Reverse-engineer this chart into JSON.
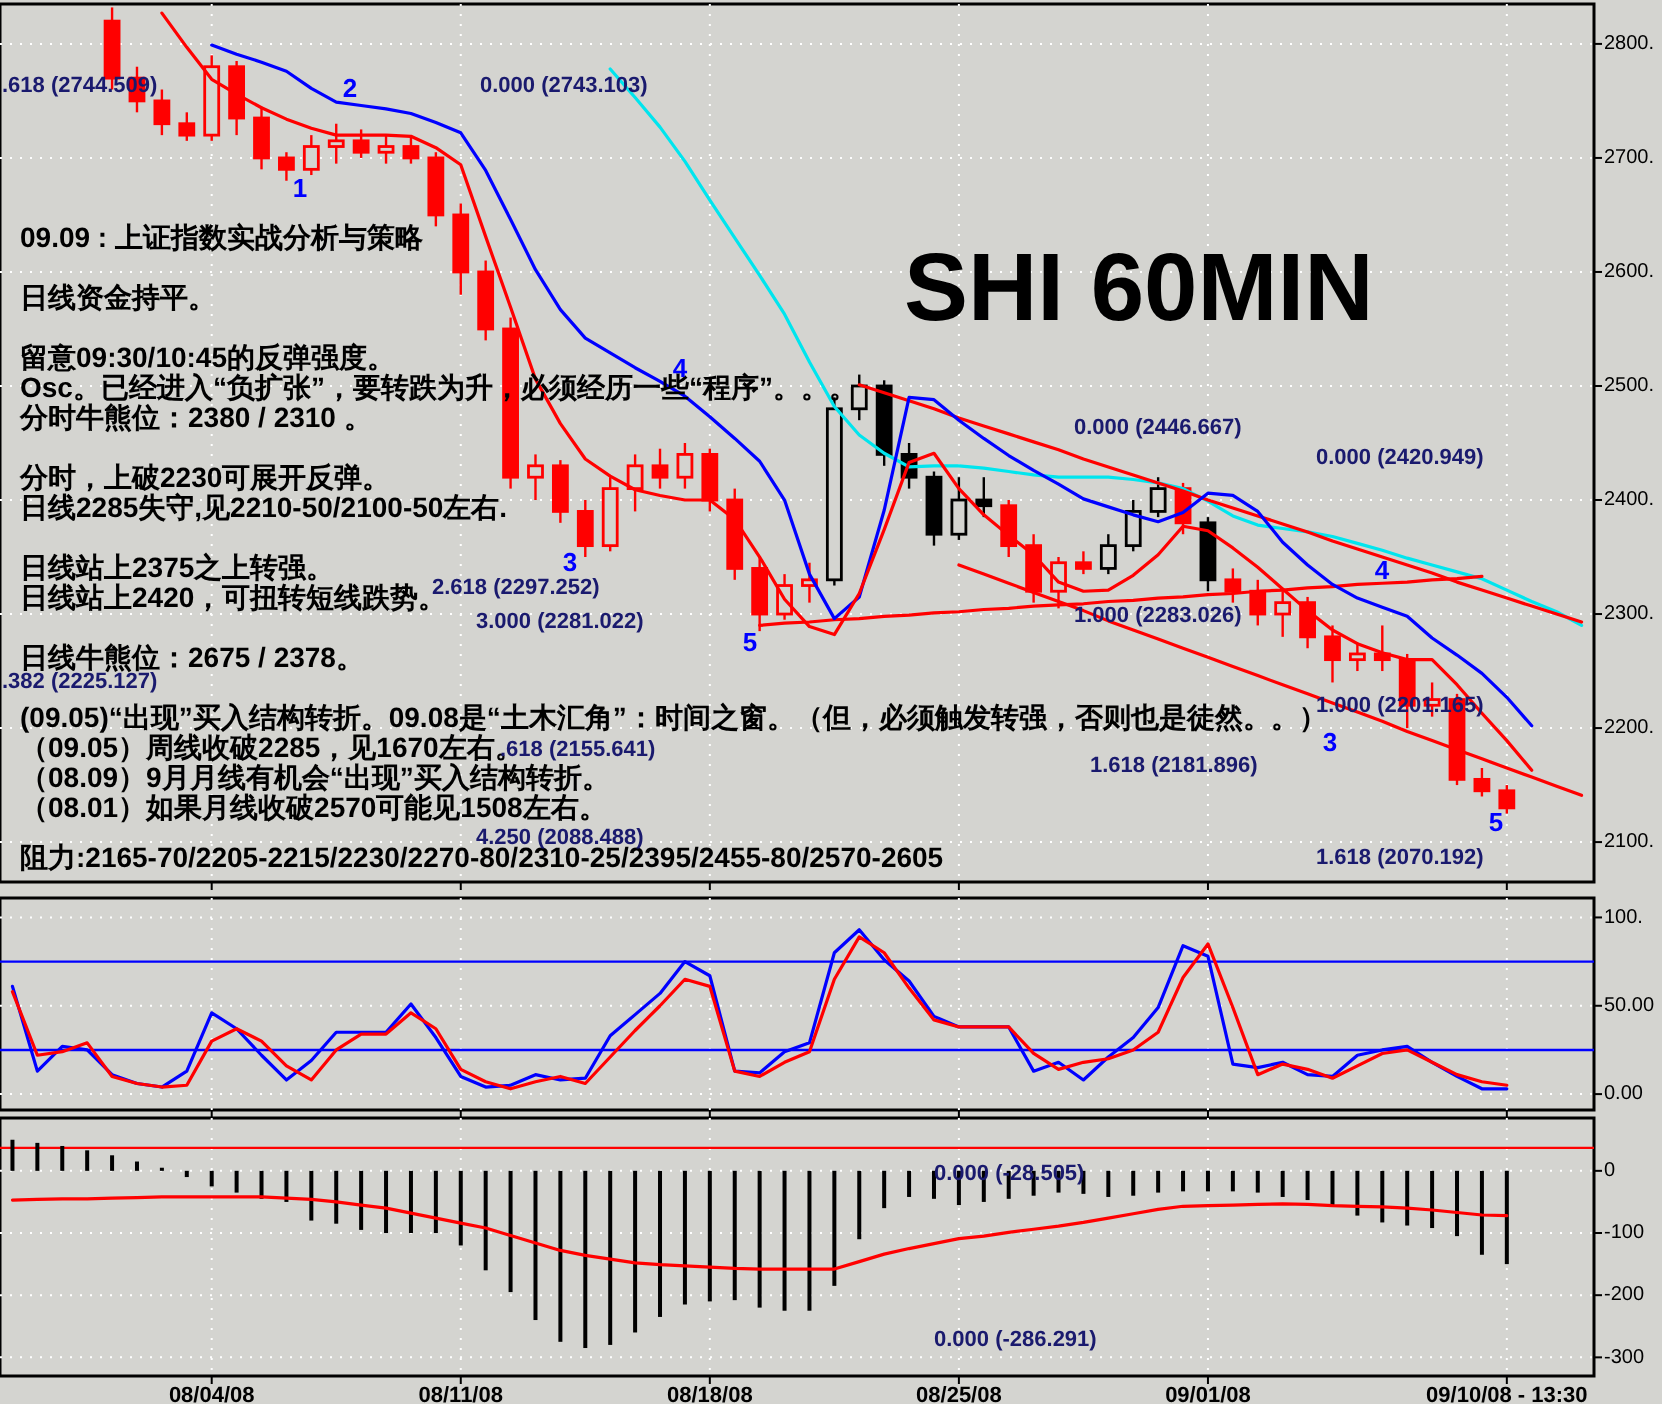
{
  "chart_data": [
    {
      "type": "candlestick",
      "title": "SHI 60MIN",
      "ohlc": [
        null,
        null,
        null,
        null,
        [
          2820,
          2832,
          2760,
          2770
        ],
        [
          2770,
          2780,
          2740,
          2750
        ],
        [
          2750,
          2760,
          2720,
          2730
        ],
        [
          2730,
          2740,
          2715,
          2720
        ],
        [
          2720,
          2790,
          2715,
          2780
        ],
        [
          2780,
          2785,
          2720,
          2735
        ],
        [
          2735,
          2745,
          2690,
          2700
        ],
        [
          2700,
          2705,
          2680,
          2690
        ],
        [
          2690,
          2720,
          2685,
          2710
        ],
        [
          2710,
          2730,
          2695,
          2715
        ],
        [
          2715,
          2725,
          2700,
          2705
        ],
        [
          2705,
          2720,
          2695,
          2710
        ],
        [
          2710,
          2720,
          2695,
          2700
        ],
        [
          2700,
          2705,
          2640,
          2650
        ],
        [
          2650,
          2660,
          2580,
          2600
        ],
        [
          2600,
          2610,
          2540,
          2550
        ],
        [
          2550,
          2560,
          2410,
          2420
        ],
        [
          2420,
          2440,
          2400,
          2430
        ],
        [
          2430,
          2435,
          2380,
          2390
        ],
        [
          2390,
          2400,
          2350,
          2360
        ],
        [
          2360,
          2420,
          2355,
          2410
        ],
        [
          2410,
          2440,
          2390,
          2430
        ],
        [
          2430,
          2445,
          2410,
          2420
        ],
        [
          2420,
          2450,
          2410,
          2440
        ],
        [
          2440,
          2445,
          2390,
          2400
        ],
        [
          2400,
          2410,
          2330,
          2340
        ],
        [
          2340,
          2350,
          2285,
          2300
        ],
        [
          2300,
          2335,
          2295,
          2325
        ],
        [
          2325,
          2345,
          2310,
          2330
        ],
        [
          2330,
          2490,
          2325,
          2480
        ],
        [
          2480,
          2510,
          2470,
          2500
        ],
        [
          2500,
          2505,
          2430,
          2440
        ],
        [
          2440,
          2450,
          2410,
          2420
        ],
        [
          2420,
          2425,
          2360,
          2370
        ],
        [
          2370,
          2420,
          2365,
          2400
        ],
        [
          2400,
          2420,
          2385,
          2395
        ],
        [
          2395,
          2400,
          2350,
          2360
        ],
        [
          2360,
          2370,
          2310,
          2320
        ],
        [
          2320,
          2350,
          2305,
          2345
        ],
        [
          2345,
          2355,
          2335,
          2340
        ],
        [
          2340,
          2370,
          2335,
          2360
        ],
        [
          2360,
          2400,
          2355,
          2390
        ],
        [
          2390,
          2420,
          2385,
          2410
        ],
        [
          2410,
          2415,
          2370,
          2380
        ],
        [
          2380,
          2385,
          2320,
          2330
        ],
        [
          2330,
          2340,
          2310,
          2320
        ],
        [
          2320,
          2330,
          2290,
          2300
        ],
        [
          2300,
          2320,
          2280,
          2310
        ],
        [
          2310,
          2315,
          2270,
          2280
        ],
        [
          2280,
          2290,
          2240,
          2260
        ],
        [
          2260,
          2275,
          2250,
          2265
        ],
        [
          2265,
          2290,
          2250,
          2260
        ],
        [
          2260,
          2265,
          2200,
          2220
        ],
        [
          2220,
          2240,
          2210,
          2225
        ],
        [
          2225,
          2230,
          2150,
          2155
        ],
        [
          2155,
          2165,
          2140,
          2145
        ],
        [
          2145,
          2150,
          2125,
          2130
        ],
        null,
        null,
        null
      ],
      "colors": [
        null,
        null,
        null,
        null,
        "#ff0000",
        "#ff0000",
        "#ff0000",
        "#ff0000",
        "#ff0000",
        "#ff0000",
        "#ff0000",
        "#ff0000",
        "#ff0000",
        "#ff0000",
        "#ff0000",
        "#ff0000",
        "#ff0000",
        "#ff0000",
        "#ff0000",
        "#ff0000",
        "#ff0000",
        "#ff0000",
        "#ff0000",
        "#ff0000",
        "#ff0000",
        "#ff0000",
        "#ff0000",
        "#ff0000",
        "#ff0000",
        "#ff0000",
        "#ff0000",
        "#ff0000",
        "#ff0000",
        "#000000",
        "#000000",
        "#000000",
        "#000000",
        "#000000",
        "#000000",
        "#000000",
        "#ff0000",
        "#ff0000",
        "#ff0000",
        "#ff0000",
        "#000000",
        "#000000",
        "#000000",
        "#ff0000",
        "#000000",
        "#ff0000",
        "#ff0000",
        "#ff0000",
        "#ff0000",
        "#ff0000",
        "#ff0000",
        "#ff0000",
        "#ff0000",
        "#ff0000",
        "#ff0000",
        "#ff0000",
        "#ff0000",
        null,
        null,
        null
      ],
      "series": [
        {
          "type": "line",
          "color": "#00e5ee",
          "values": [
            null,
            null,
            null,
            null,
            null,
            null,
            null,
            null,
            null,
            null,
            null,
            null,
            null,
            null,
            null,
            null,
            null,
            null,
            null,
            null,
            null,
            null,
            null,
            null,
            2778,
            2753,
            2727,
            2697,
            2663,
            2630,
            2597,
            2563,
            2521,
            2482,
            2457,
            2441,
            2429,
            2430,
            2430,
            2428,
            2425,
            2422,
            2420,
            2420,
            2420,
            2418,
            2415,
            2410,
            2399,
            2386,
            2378,
            2375,
            2372,
            2368,
            2362,
            2356,
            2349,
            2343,
            2337,
            2331,
            2321,
            2311,
            2302,
            2290
          ]
        },
        {
          "type": "line",
          "color": "#ff0000",
          "values": [
            null,
            null,
            null,
            null,
            null,
            null,
            null,
            null,
            null,
            null,
            null,
            null,
            null,
            null,
            null,
            null,
            null,
            null,
            null,
            null,
            null,
            null,
            null,
            null,
            null,
            null,
            null,
            null,
            null,
            null,
            null,
            null,
            null,
            null,
            2501,
            2494,
            2487,
            2480,
            2472,
            2465,
            2458,
            2451,
            2444,
            2436,
            2429,
            2422,
            2415,
            2408,
            2400,
            2393,
            2386,
            2379,
            2372,
            2364,
            2357,
            2350,
            2343,
            2336,
            2328,
            2321,
            2314,
            2307,
            2300,
            2293
          ]
        },
        {
          "type": "line",
          "color": "#ff0000",
          "values": [
            null,
            null,
            null,
            null,
            null,
            null,
            null,
            null,
            null,
            null,
            null,
            null,
            null,
            null,
            null,
            null,
            null,
            null,
            null,
            null,
            null,
            null,
            null,
            null,
            null,
            null,
            null,
            null,
            null,
            null,
            null,
            null,
            null,
            null,
            null,
            null,
            null,
            null,
            2343,
            2335,
            2327,
            2319,
            2311,
            2303,
            2294,
            2286,
            2278,
            2270,
            2262,
            2254,
            2246,
            2238,
            2230,
            2222,
            2214,
            2206,
            2197,
            2189,
            2181,
            2173,
            2165,
            2157,
            2149,
            2141
          ]
        },
        {
          "type": "line",
          "color": "#ff0000",
          "values": [
            null,
            null,
            null,
            null,
            null,
            null,
            null,
            null,
            null,
            null,
            null,
            null,
            null,
            null,
            null,
            null,
            null,
            null,
            null,
            null,
            null,
            null,
            null,
            null,
            null,
            null,
            null,
            null,
            null,
            null,
            2290,
            2292,
            2293,
            2295,
            2296,
            2298,
            2299,
            2301,
            2302,
            2304,
            2305,
            2307,
            2308,
            2309,
            2311,
            2312,
            2314,
            2315,
            2317,
            2318,
            2320,
            2321,
            2323,
            2324,
            2326,
            2327,
            2328,
            2330,
            2331,
            2333,
            null,
            null,
            null,
            null
          ]
        },
        {
          "type": "line",
          "color": "#0000ff",
          "values": [
            null,
            null,
            null,
            null,
            null,
            null,
            null,
            null,
            2799,
            2791,
            2784,
            2776,
            2761,
            2749,
            2746,
            2743,
            2739,
            2731,
            2722,
            2689,
            2646,
            2602,
            2567,
            2542,
            2529,
            2516,
            2504,
            2491,
            2473,
            2454,
            2434,
            2400,
            2335,
            2296,
            2315,
            2391,
            2490,
            2488,
            2470,
            2454,
            2439,
            2426,
            2414,
            2401,
            2394,
            2387,
            2381,
            2389,
            2406,
            2404,
            2390,
            2363,
            2343,
            2326,
            2314,
            2306,
            2298,
            2279,
            2264,
            2248,
            2227,
            2202,
            null,
            null
          ]
        },
        {
          "type": "line",
          "color": "#ff0000",
          "values": [
            null,
            null,
            null,
            null,
            null,
            null,
            2827,
            2797,
            2769,
            2756,
            2744,
            2734,
            2726,
            2720,
            2720,
            2720,
            2719,
            2709,
            2694,
            2631,
            2569,
            2506,
            2467,
            2436,
            2421,
            2409,
            2404,
            2400,
            2400,
            2383,
            2350,
            2313,
            2289,
            2282,
            2318,
            2374,
            2433,
            2441,
            2410,
            2387,
            2369,
            2352,
            2328,
            2320,
            2321,
            2334,
            2352,
            2377,
            2373,
            2358,
            2341,
            2322,
            2303,
            2286,
            2274,
            2266,
            2260,
            2260,
            2238,
            2213,
            2189,
            2163,
            null,
            null
          ]
        }
      ],
      "annotations": [
        "09.09 : 上证指数实战分析与策略",
        "日线资金持平。",
        "留意09:30/10:45的反弹强度。",
        "Osc。已经进入“负扩张”，要转跌为升，必须经历一些“程序”。。。",
        "分时牛熊位：2380 / 2310 。",
        "分时，上破2230可展开反弹。",
        "日线2285失守,见2210-50/2100-50左右.",
        "日线站上2375之上转强。",
        "日线站上2420，可扭转短线跌势。",
        "日线牛熊位：2675 / 2378。",
        "(09.05)“出现”买入结构转折。09.08是“土木汇角”：时间之窗。（但，必须触发转强，否则也是徒然。。）",
        "（09.05）周线收破2285，见1670左右。",
        "（08.09）9月月线有机会“出现”买入结构转折。",
        "（08.01）如果月线收破2570可能见1508左右。",
        "阻力:2165-70/2205-2215/2230/2270-80/2310-25/2395/2455-80/2570-2605",
        ".618 (2744.509)",
        "0.000 (2743.103)",
        "2.618 (2297.252)",
        "3.000 (2281.022)",
        ".382 (2225.127)",
        ".618 (2155.641)",
        "4.250 (2088.488)",
        "0.000 (2446.667)",
        "0.000 (2420.949)",
        "1.000 (2283.026)",
        "1.000 (2201.165)",
        "1.618 (2181.896)",
        "1.618 (2070.192)",
        "1",
        "2",
        "3",
        "4",
        "5",
        "3",
        "4",
        "5"
      ],
      "ylim": [
        2065,
        2835
      ],
      "yticks": [
        {
          "value": 2100,
          "label": "2100."
        },
        {
          "value": 2200,
          "label": "2200."
        },
        {
          "value": 2300,
          "label": "2300."
        },
        {
          "value": 2400,
          "label": "2400."
        },
        {
          "value": 2500,
          "label": "2500."
        },
        {
          "value": 2600,
          "label": "2600."
        },
        {
          "value": 2700,
          "label": "2700."
        },
        {
          "value": 2800,
          "label": "2800."
        }
      ],
      "tick_labels": "y",
      "grid": true
    },
    {
      "type": "line",
      "series": [
        {
          "color": "#0000ff",
          "values": [
            61,
            13,
            27,
            25,
            11,
            6,
            4,
            13,
            46,
            37,
            22,
            8,
            19,
            35,
            35,
            35,
            51,
            32,
            10,
            4,
            5,
            11,
            8,
            9,
            33,
            45,
            57,
            75,
            67,
            13,
            12,
            24,
            29,
            80,
            93,
            76,
            64,
            44,
            38,
            38,
            38,
            13,
            18,
            8,
            21,
            32,
            49,
            84,
            78,
            17,
            15,
            18,
            11,
            10,
            22,
            25,
            27,
            18,
            10,
            3,
            3,
            null,
            null,
            null
          ]
        },
        {
          "color": "#ff0000",
          "values": [
            58,
            22,
            24,
            29,
            10,
            6,
            4,
            5,
            30,
            37,
            30,
            16,
            8,
            25,
            34,
            34,
            46,
            37,
            14,
            7,
            3,
            7,
            10,
            6,
            21,
            36,
            50,
            65,
            61,
            13,
            10,
            18,
            24,
            65,
            89,
            80,
            60,
            42,
            38,
            38,
            38,
            23,
            14,
            18,
            20,
            25,
            35,
            66,
            85,
            49,
            11,
            17,
            14,
            9,
            16,
            23,
            25,
            18,
            11,
            7,
            5,
            null,
            null,
            null
          ]
        }
      ],
      "ref_lines": [
        {
          "axis": "y",
          "value": 75,
          "color": "#0000ff"
        },
        {
          "axis": "y",
          "value": 25,
          "color": "#0000ff"
        }
      ],
      "ylim": [
        -9,
        111
      ],
      "yticks": [
        {
          "value": 100,
          "label": "100."
        },
        {
          "value": 50,
          "label": "50.00"
        },
        {
          "value": 0,
          "label": "0.00"
        }
      ],
      "tick_labels": "y",
      "grid": true
    },
    {
      "type": "bar",
      "categories": [
        null,
        null,
        null,
        null,
        null,
        null,
        null,
        null,
        "08/04/08",
        null,
        null,
        null,
        null,
        null,
        null,
        null,
        null,
        null,
        "08/11/08",
        null,
        null,
        null,
        null,
        null,
        null,
        null,
        null,
        null,
        "08/18/08",
        null,
        null,
        null,
        null,
        null,
        null,
        null,
        null,
        null,
        "08/25/08",
        null,
        null,
        null,
        null,
        null,
        null,
        null,
        null,
        null,
        "09/01/08",
        null,
        null,
        null,
        null,
        null,
        null,
        null,
        null,
        null,
        null,
        null,
        "09/10/08 - 13:30",
        null,
        null,
        null
      ],
      "values": [
        50,
        45,
        40,
        33,
        25,
        15,
        5,
        -10,
        -25,
        -35,
        -45,
        -50,
        -80,
        -85,
        -95,
        -100,
        -100,
        -100,
        -120,
        -160,
        -195,
        -240,
        -275,
        -285,
        -280,
        -260,
        -235,
        -215,
        -210,
        -208,
        -220,
        -225,
        -225,
        -185,
        -110,
        -60,
        -42,
        -45,
        -55,
        -50,
        -45,
        -40,
        -35,
        -37,
        -42,
        -40,
        -35,
        -33,
        -33,
        -33,
        -35,
        -42,
        -47,
        -58,
        -72,
        -83,
        -88,
        -92,
        -105,
        -135,
        -150,
        null,
        null,
        null
      ],
      "color": "#000000",
      "series": [
        {
          "type": "line",
          "color": "#ff0000",
          "values": [
            -47,
            -46,
            -45,
            -45,
            -44,
            -43,
            -42,
            -42,
            -42,
            -42,
            -42,
            -44,
            -46,
            -50,
            -55,
            -60,
            -68,
            -76,
            -84,
            -92,
            -104,
            -116,
            -128,
            -136,
            -142,
            -148,
            -151,
            -153,
            -155,
            -157,
            -158,
            -158,
            -158,
            -158,
            -146,
            -134,
            -125,
            -117,
            -109,
            -105,
            -99,
            -94,
            -89,
            -83,
            -76,
            -69,
            -62,
            -57,
            -56,
            -55,
            -54,
            -53,
            -54,
            -56,
            -57,
            -58,
            -60,
            -63,
            -67,
            -71,
            -72,
            null,
            null,
            null
          ]
        }
      ],
      "ref_lines": [
        {
          "axis": "y",
          "value": 37,
          "color": "#ff0000"
        }
      ],
      "annotations": [
        "0.000 (-28.505)",
        "0.000 (-286.291)"
      ],
      "ylim": [
        -330,
        85
      ],
      "yticks": [
        0,
        -100,
        -200,
        -300
      ],
      "grid": true
    }
  ]
}
